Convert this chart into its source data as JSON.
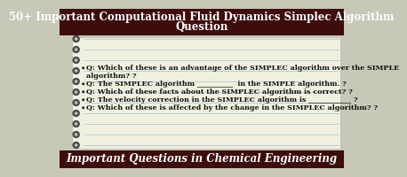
{
  "title_line1": "50+ Important Computational Fluid Dynamics Simplec Algorithm",
  "title_line2": "Question",
  "title_bg": "#3d0c0c",
  "title_color": "#ffffff",
  "footer_text": "Important Questions in Chemical Engineering",
  "footer_bg": "#3d0c0c",
  "footer_color": "#ffffff",
  "body_bg": "#c8c8b8",
  "notebook_bg": "#f0f0e0",
  "line_color": "#a8c0d0",
  "questions": [
    "Q: Which of these is an advantage of the SIMPLEC algorithm over the SIMPLE",
    "algorithm? ?",
    "Q: The SIMPLEC algorithm __________  in the SIMPLE algorithm. ?",
    "Q: Which of these facts about the SIMPLEC algorithm is correct? ?",
    "Q: The velocity correction in the SIMPLEC algorithm is ____________ ?",
    "Q: Which of these is affected by the change in the SIMPLEC algorithm? ?"
  ],
  "question_color": "#111111",
  "question_fontsize": 5.8,
  "title_fontsize": 8.5,
  "footer_fontsize": 8.5,
  "spiral_color_outer": "#555555",
  "spiral_color_inner": "#c8c8b8"
}
